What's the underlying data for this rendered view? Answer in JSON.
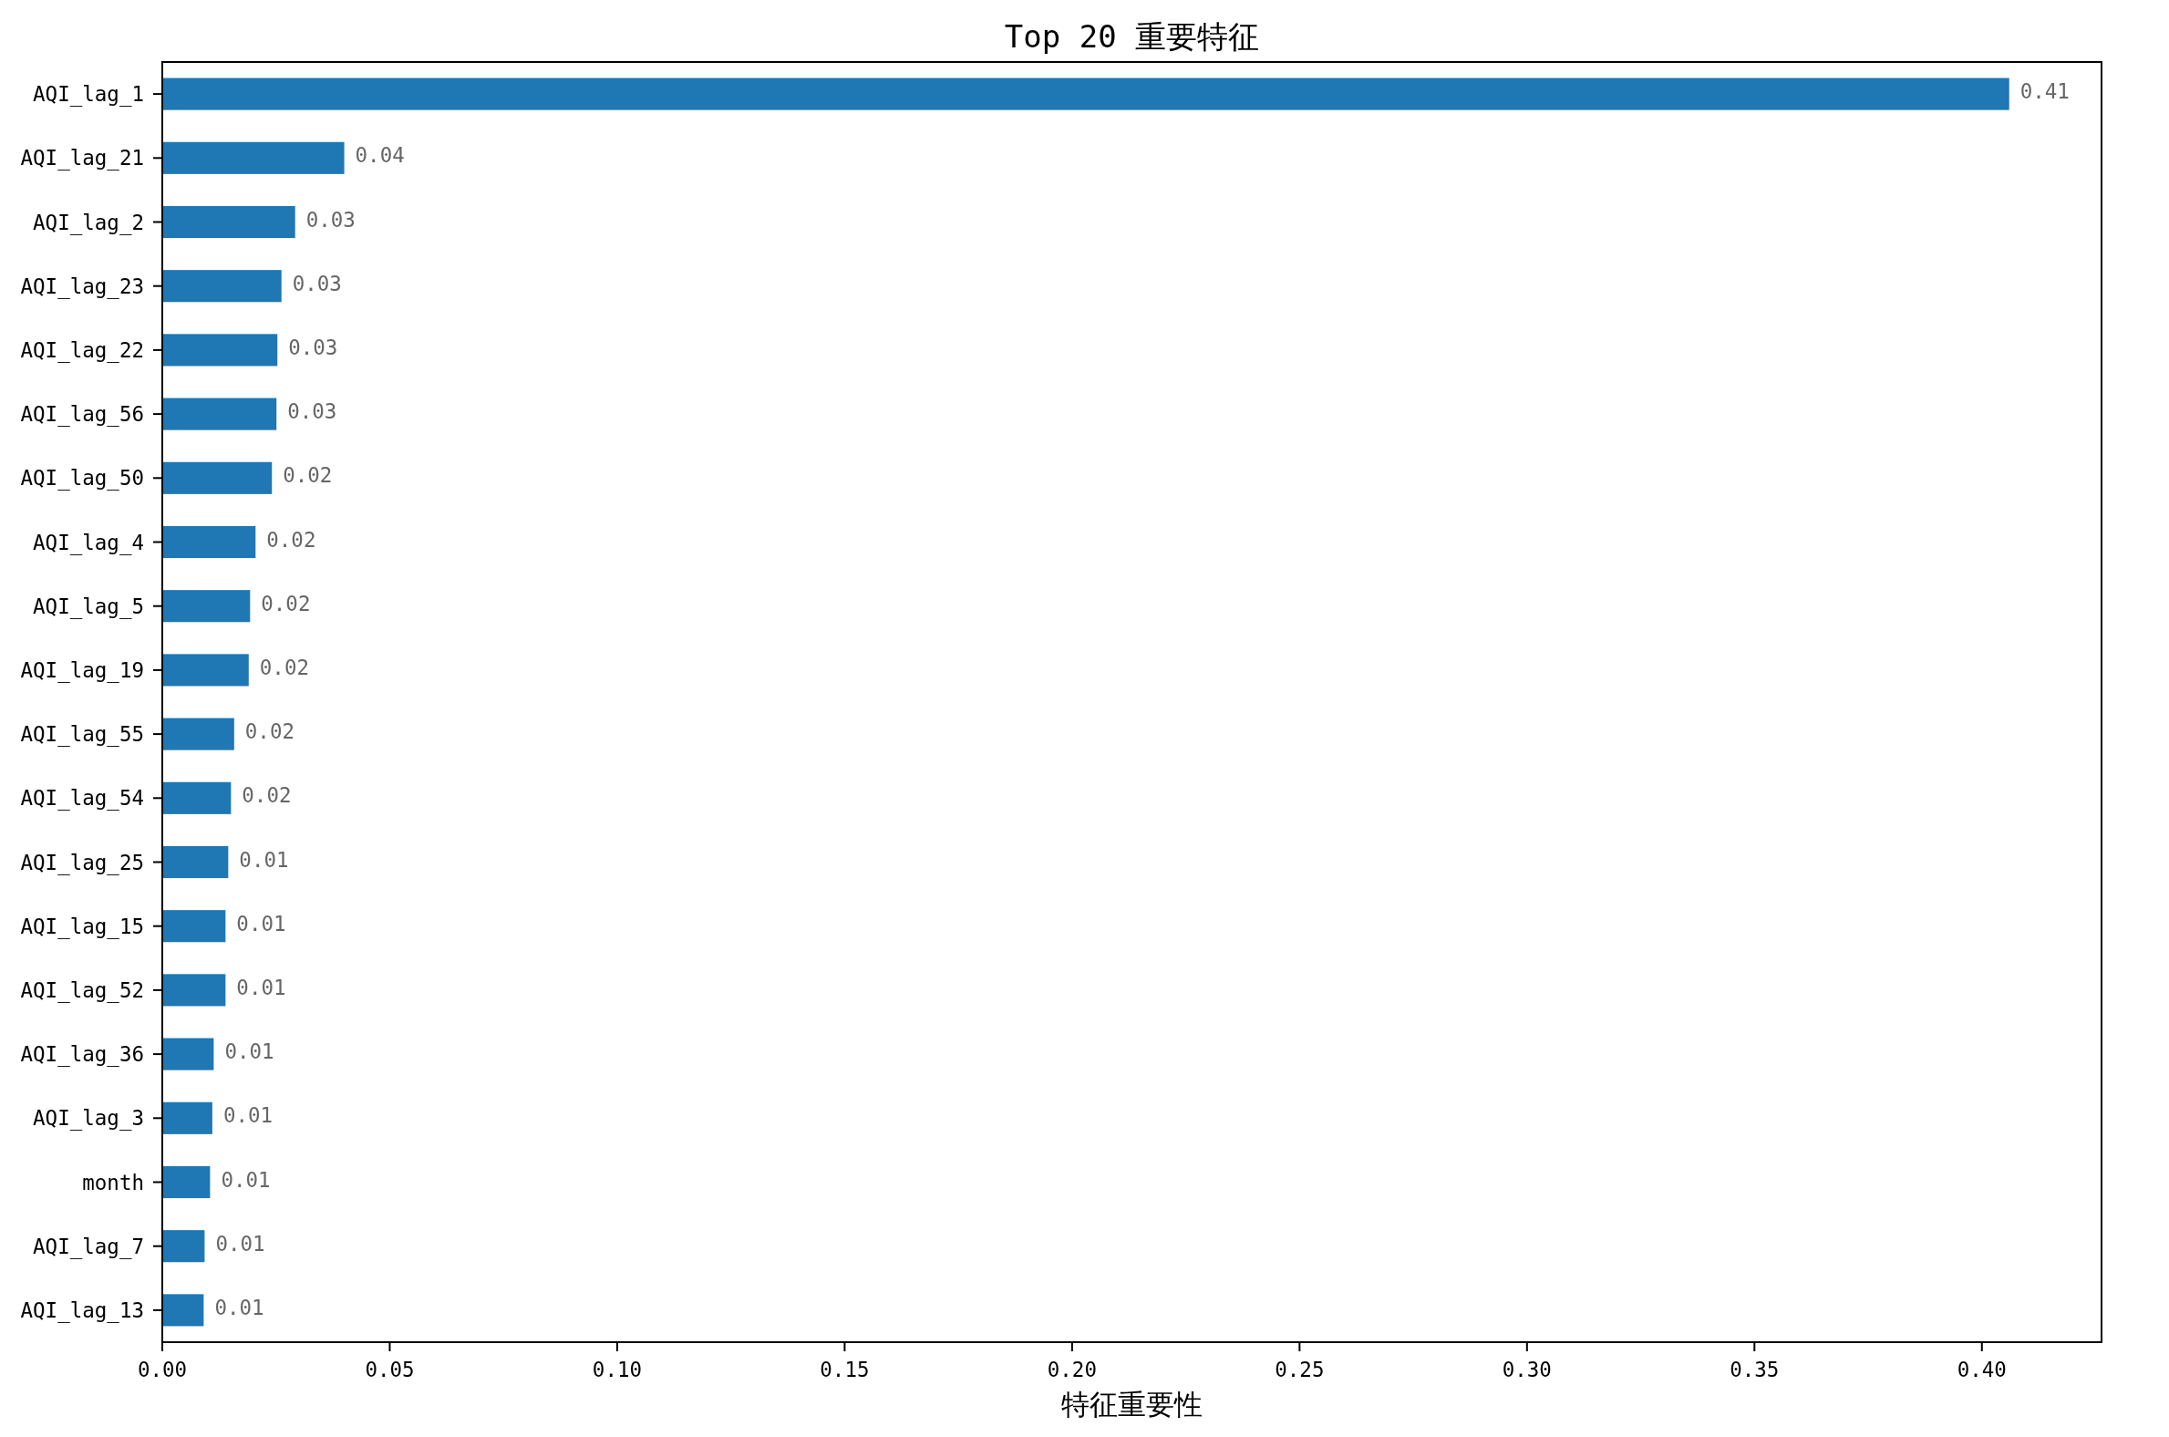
{
  "chart_data": {
    "type": "bar",
    "orientation": "horizontal",
    "title": "Top 20 重要特征",
    "xlabel": "特征重要性",
    "categories": [
      "AQI_lag_1",
      "AQI_lag_21",
      "AQI_lag_2",
      "AQI_lag_23",
      "AQI_lag_22",
      "AQI_lag_56",
      "AQI_lag_50",
      "AQI_lag_4",
      "AQI_lag_5",
      "AQI_lag_19",
      "AQI_lag_55",
      "AQI_lag_54",
      "AQI_lag_25",
      "AQI_lag_15",
      "AQI_lag_52",
      "AQI_lag_36",
      "AQI_lag_3",
      "month",
      "AQI_lag_7",
      "AQI_lag_13"
    ],
    "values": [
      0.406,
      0.04,
      0.0292,
      0.0262,
      0.0253,
      0.0251,
      0.0241,
      0.0205,
      0.0193,
      0.019,
      0.0158,
      0.0151,
      0.0145,
      0.0139,
      0.0139,
      0.0113,
      0.011,
      0.0105,
      0.0093,
      0.0091
    ],
    "value_labels": [
      "0.41",
      "0.04",
      "0.03",
      "0.03",
      "0.03",
      "0.03",
      "0.02",
      "0.02",
      "0.02",
      "0.02",
      "0.02",
      "0.02",
      "0.01",
      "0.01",
      "0.01",
      "0.01",
      "0.01",
      "0.01",
      "0.01",
      "0.01"
    ],
    "color": "#1f77b4",
    "xlim": [
      0,
      0.4263
    ],
    "xticks": [
      {
        "value": 0,
        "label": "0.00"
      },
      {
        "value": 0.05,
        "label": "0.05"
      },
      {
        "value": 0.1,
        "label": "0.10"
      },
      {
        "value": 0.15,
        "label": "0.15"
      },
      {
        "value": 0.2,
        "label": "0.20"
      },
      {
        "value": 0.25,
        "label": "0.25"
      },
      {
        "value": 0.3,
        "label": "0.30"
      },
      {
        "value": 0.35,
        "label": "0.35"
      },
      {
        "value": 0.4,
        "label": "0.40"
      }
    ]
  }
}
